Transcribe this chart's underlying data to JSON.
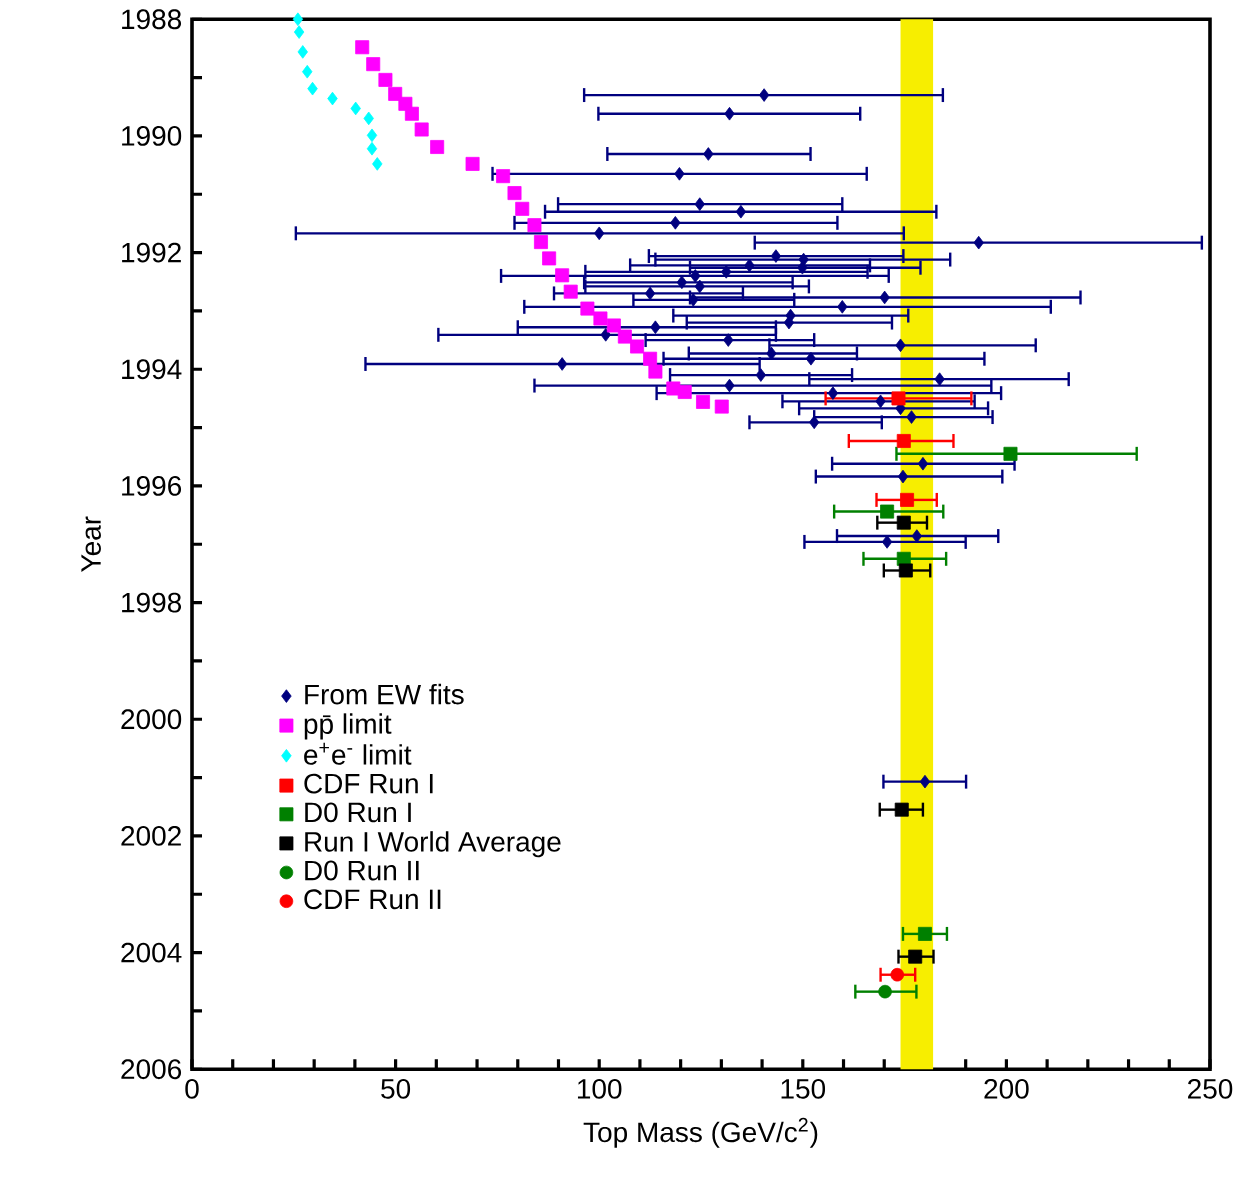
{
  "chart_data": {
    "type": "scatter",
    "xlabel": "Top Mass (GeV/c$^{2}$)",
    "ylabel": "Year",
    "xlim": [
      0,
      250
    ],
    "ylim": [
      2006,
      1988
    ],
    "xticks": [
      0,
      {
        "value": 10,
        "label": null
      },
      {
        "value": 20,
        "label": null
      },
      {
        "value": 30,
        "label": null
      },
      {
        "value": 40,
        "label": null
      },
      50,
      {
        "value": 60,
        "label": null
      },
      {
        "value": 70,
        "label": null
      },
      {
        "value": 80,
        "label": null
      },
      {
        "value": 90,
        "label": null
      },
      100,
      {
        "value": 110,
        "label": null
      },
      {
        "value": 120,
        "label": null
      },
      {
        "value": 130,
        "label": null
      },
      {
        "value": 140,
        "label": null
      },
      150,
      {
        "value": 160,
        "label": null
      },
      {
        "value": 170,
        "label": null
      },
      {
        "value": 180,
        "label": null
      },
      {
        "value": 190,
        "label": null
      },
      200,
      {
        "value": 210,
        "label": null
      },
      {
        "value": 220,
        "label": null
      },
      {
        "value": 230,
        "label": null
      },
      {
        "value": 240,
        "label": null
      },
      250
    ],
    "yticks": [
      1988,
      {
        "value": 1989,
        "label": null
      },
      1990,
      {
        "value": 1991,
        "label": null
      },
      1992,
      {
        "value": 1993,
        "label": null
      },
      1994,
      {
        "value": 1995,
        "label": null
      },
      1996,
      {
        "value": 1997,
        "label": null
      },
      1998,
      {
        "value": 1999,
        "label": null
      },
      2000,
      {
        "value": 2001,
        "label": null
      },
      2002,
      {
        "value": 2003,
        "label": null
      },
      2004,
      {
        "value": 2005,
        "label": null
      },
      2006
    ],
    "legend": "bottom left",
    "grid": false,
    "bands": [
      {
        "axis": "x",
        "from": 174,
        "to": 182,
        "color": "#f7ee00"
      }
    ],
    "series": [
      {
        "name": "From EW fits",
        "color": "#00007f",
        "marker": "diamond",
        "x": [
          140.5,
          132.0,
          126.8,
          119.7,
          124.7,
          134.8,
          118.7,
          100.0,
          193.2,
          143.4,
          150.2,
          136.9,
          149.9,
          131.2,
          123.6,
          120.3,
          124.7,
          112.5,
          123.1,
          170.1,
          159.7,
          147.0,
          146.6,
          113.8,
          101.6,
          131.7,
          174.0,
          142.3,
          152.0,
          90.9,
          139.7,
          183.6,
          132.0,
          157.4,
          169.1,
          174.0,
          176.7,
          152.8,
          179.5,
          174.6,
          178.0,
          170.7,
          180.0
        ],
        "values": [
          1989.3,
          1989.62,
          1990.31,
          1990.65,
          1991.17,
          1991.3,
          1991.49,
          1991.67,
          1991.83,
          1992.06,
          1992.12,
          1992.22,
          1992.26,
          1992.33,
          1992.4,
          1992.51,
          1992.58,
          1992.7,
          1992.81,
          1992.77,
          1992.93,
          1993.08,
          1993.2,
          1993.28,
          1993.41,
          1993.5,
          1993.59,
          1993.73,
          1993.82,
          1993.91,
          1994.1,
          1994.17,
          1994.28,
          1994.41,
          1994.55,
          1994.67,
          1994.82,
          1994.91,
          1995.62,
          1995.84,
          1996.86,
          1996.96,
          2001.07
        ],
        "xerrors": [
          [
            96.3,
            184.4
          ],
          [
            99.8,
            164.1
          ],
          [
            102.0,
            151.9
          ],
          [
            73.8,
            165.7
          ],
          [
            89.9,
            159.7
          ],
          [
            86.7,
            182.8
          ],
          [
            79.2,
            158.5
          ],
          [
            25.5,
            174.8
          ],
          [
            138.2,
            248.0
          ],
          [
            112.2,
            174.7
          ],
          [
            113.8,
            186.2
          ],
          [
            107.6,
            166.5
          ],
          [
            122.3,
            178.9
          ],
          [
            96.6,
            165.9
          ],
          [
            75.9,
            171.1
          ],
          [
            96.3,
            147.5
          ],
          [
            96.6,
            151.5
          ],
          [
            88.9,
            135.3
          ],
          [
            108.4,
            147.9
          ],
          [
            122.3,
            218.2
          ],
          [
            81.6,
            210.9
          ],
          [
            118.2,
            175.9
          ],
          [
            121.5,
            171.9
          ],
          [
            80.0,
            143.4
          ],
          [
            60.5,
            143.4
          ],
          [
            111.4,
            152.8
          ],
          [
            141.8,
            207.2
          ],
          [
            122.0,
            163.3
          ],
          [
            115.8,
            194.6
          ],
          [
            42.6,
            139.4
          ],
          [
            117.4,
            162.1
          ],
          [
            151.6,
            215.3
          ],
          [
            84.1,
            196.3
          ],
          [
            114.1,
            198.7
          ],
          [
            145.0,
            192.2
          ],
          [
            149.1,
            195.5
          ],
          [
            152.8,
            196.6
          ],
          [
            136.9,
            169.4
          ],
          [
            157.2,
            202.0
          ],
          [
            153.2,
            199.0
          ],
          [
            158.4,
            198.0
          ],
          [
            150.4,
            190.0
          ],
          [
            169.8,
            190.1
          ]
        ]
      },
      {
        "name": "pp̄ limit",
        "color": "#ff00ff",
        "marker": "square",
        "x": [
          41.8,
          44.5,
          47.5,
          49.9,
          52.4,
          54.0,
          56.4,
          60.2,
          68.9,
          76.4,
          79.2,
          81.1,
          84.1,
          85.7,
          87.7,
          90.9,
          93.0,
          97.1,
          100.3,
          103.6,
          106.3,
          109.3,
          112.5,
          113.8,
          118.2,
          121.0,
          125.5,
          130.1
        ],
        "values": [
          1988.48,
          1988.77,
          1989.04,
          1989.28,
          1989.45,
          1989.62,
          1989.89,
          1990.19,
          1990.48,
          1990.69,
          1990.98,
          1991.25,
          1991.53,
          1991.82,
          1992.1,
          1992.39,
          1992.67,
          1992.96,
          1993.13,
          1993.25,
          1993.44,
          1993.61,
          1993.82,
          1994.04,
          1994.33,
          1994.39,
          1994.56,
          1994.64
        ]
      },
      {
        "name": "e$^{+}$e$^{-}$  limit",
        "color": "#00ffff",
        "marker": "diamond",
        "x": [
          26.0,
          26.3,
          27.2,
          28.3,
          29.6,
          34.5,
          40.2,
          43.4,
          44.2,
          44.2,
          45.5
        ],
        "values": [
          1988.0,
          1988.22,
          1988.56,
          1988.9,
          1989.19,
          1989.36,
          1989.53,
          1989.7,
          1989.99,
          1990.22,
          1990.48
        ]
      },
      {
        "name": "CDF Run I",
        "color": "#ff0000",
        "marker": "square",
        "x": [
          173.5,
          174.8,
          175.6
        ],
        "values": [
          1994.5,
          1995.23,
          1996.24
        ],
        "xerrors": [
          [
            155.6,
            191.4
          ],
          [
            161.3,
            187.0
          ],
          [
            168.1,
            182.9
          ]
        ]
      },
      {
        "name": "D0 Run I",
        "color": "#008000",
        "marker": "square",
        "x": [
          201.0,
          170.7,
          174.8,
          180.0
        ],
        "values": [
          1995.45,
          1996.44,
          1997.25,
          2003.68
        ],
        "xerrors": [
          [
            173.0,
            232.0
          ],
          [
            157.7,
            184.5
          ],
          [
            164.9,
            185.2
          ],
          [
            174.6,
            185.4
          ]
        ]
      },
      {
        "name": "Run I World Average",
        "color": "#000000",
        "marker": "square",
        "x": [
          174.8,
          175.3,
          174.3,
          177.6
        ],
        "values": [
          1996.63,
          1997.45,
          2001.55,
          2004.07
        ],
        "xerrors": [
          [
            168.3,
            180.5
          ],
          [
            169.9,
            181.3
          ],
          [
            168.9,
            179.5
          ],
          [
            173.5,
            182.1
          ]
        ]
      },
      {
        "name": "D0 Run II",
        "color": "#008000",
        "marker": "circle",
        "x": [
          170.2
        ],
        "values": [
          2004.67
        ],
        "xerrors": [
          [
            162.9,
            177.9
          ]
        ]
      },
      {
        "name": "CDF Run II",
        "color": "#ff0000",
        "marker": "circle",
        "x": [
          173.2
        ],
        "values": [
          2004.38
        ],
        "xerrors": [
          [
            169.1,
            177.6
          ]
        ]
      }
    ]
  }
}
